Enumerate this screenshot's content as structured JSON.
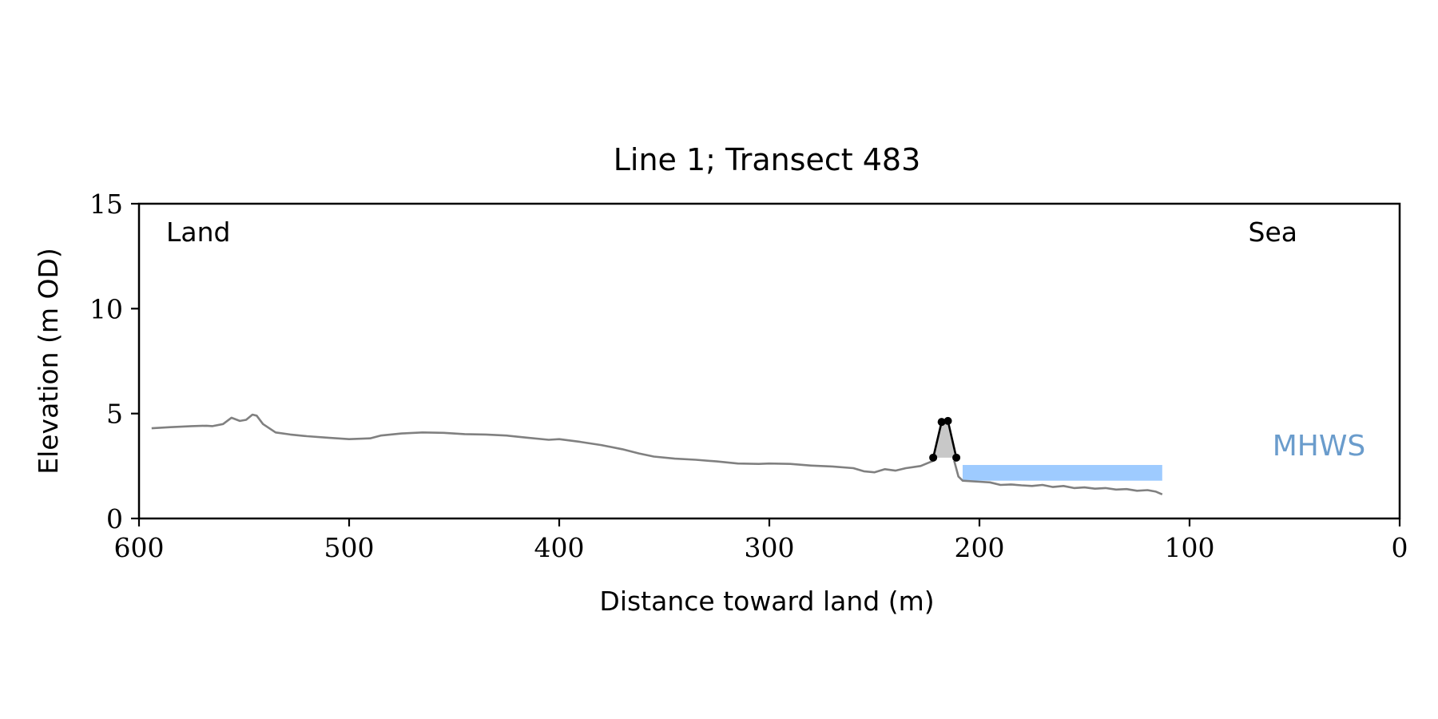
{
  "chart_data": {
    "type": "line",
    "title": "Line 1; Transect 483",
    "xlabel": "Distance toward land (m)",
    "ylabel": "Elevation (m OD)",
    "xlim": [
      600,
      0
    ],
    "ylim": [
      0,
      15
    ],
    "x_ticks": [
      600,
      500,
      400,
      300,
      200,
      100,
      0
    ],
    "y_ticks": [
      0,
      5,
      10,
      15
    ],
    "grid": false,
    "annotations": {
      "land_label": "Land",
      "sea_label": "Sea",
      "mhws_label": "MHWS"
    },
    "colors": {
      "profile": "#808080",
      "dune": "#000000",
      "dune_fill": "#c8c8c8",
      "mhws_fill": "#9ecbff",
      "mhws_text": "#6a9ccc"
    },
    "series": [
      {
        "style": "profile",
        "points": [
          [
            594,
            4.3
          ],
          [
            585,
            4.35
          ],
          [
            575,
            4.4
          ],
          [
            568,
            4.42
          ],
          [
            565,
            4.4
          ],
          [
            560,
            4.5
          ],
          [
            556,
            4.8
          ],
          [
            552,
            4.65
          ],
          [
            549,
            4.7
          ],
          [
            546,
            4.95
          ],
          [
            544,
            4.9
          ],
          [
            541,
            4.5
          ],
          [
            535,
            4.1
          ],
          [
            528,
            4.0
          ],
          [
            520,
            3.92
          ],
          [
            510,
            3.85
          ],
          [
            500,
            3.78
          ],
          [
            490,
            3.82
          ],
          [
            485,
            3.95
          ],
          [
            475,
            4.05
          ],
          [
            465,
            4.1
          ],
          [
            455,
            4.08
          ],
          [
            445,
            4.02
          ],
          [
            435,
            4.0
          ],
          [
            425,
            3.95
          ],
          [
            415,
            3.85
          ],
          [
            405,
            3.75
          ],
          [
            400,
            3.78
          ],
          [
            390,
            3.65
          ],
          [
            380,
            3.5
          ],
          [
            370,
            3.3
          ],
          [
            362,
            3.1
          ],
          [
            355,
            2.95
          ],
          [
            345,
            2.85
          ],
          [
            335,
            2.8
          ],
          [
            325,
            2.72
          ],
          [
            315,
            2.62
          ],
          [
            305,
            2.6
          ],
          [
            300,
            2.62
          ],
          [
            290,
            2.6
          ],
          [
            280,
            2.52
          ],
          [
            270,
            2.48
          ],
          [
            260,
            2.4
          ],
          [
            255,
            2.25
          ],
          [
            250,
            2.2
          ],
          [
            245,
            2.35
          ],
          [
            240,
            2.28
          ],
          [
            235,
            2.4
          ],
          [
            228,
            2.5
          ],
          [
            222,
            2.75
          ]
        ]
      },
      {
        "style": "profile",
        "points": [
          [
            212,
            2.75
          ],
          [
            210,
            2.0
          ],
          [
            208,
            1.8
          ],
          [
            200,
            1.75
          ],
          [
            195,
            1.72
          ],
          [
            190,
            1.6
          ],
          [
            185,
            1.62
          ],
          [
            180,
            1.58
          ],
          [
            175,
            1.55
          ],
          [
            170,
            1.6
          ],
          [
            165,
            1.5
          ],
          [
            160,
            1.55
          ],
          [
            155,
            1.45
          ],
          [
            150,
            1.48
          ],
          [
            145,
            1.42
          ],
          [
            140,
            1.45
          ],
          [
            135,
            1.38
          ],
          [
            130,
            1.4
          ],
          [
            125,
            1.32
          ],
          [
            120,
            1.35
          ],
          [
            116,
            1.28
          ],
          [
            113,
            1.15
          ]
        ]
      }
    ],
    "dune": {
      "points": [
        [
          222,
          2.9
        ],
        [
          218,
          4.6
        ],
        [
          215,
          4.65
        ],
        [
          211,
          2.9
        ]
      ]
    },
    "mhws_band": {
      "x_range": [
        208,
        113
      ],
      "y_range": [
        1.8,
        2.55
      ]
    }
  }
}
